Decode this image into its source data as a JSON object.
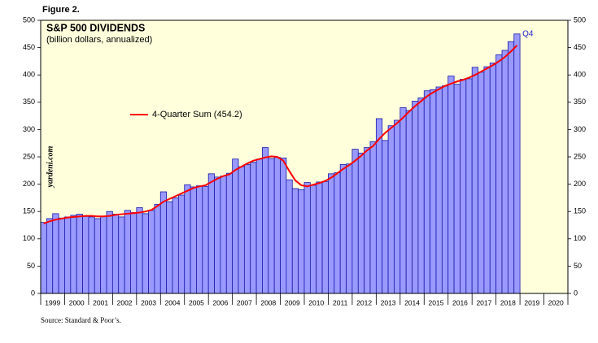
{
  "figure_label": "Figure 2.",
  "source": "Source: Standard & Poor’s.",
  "chart_data": {
    "type": "bar",
    "title": "S&P 500 DIVIDENDS",
    "subtitle": "(billion dollars, annualized)",
    "watermark": "yardeni.com",
    "annotation": "Q4",
    "x": [
      1999,
      1999.25,
      1999.5,
      1999.75,
      2000,
      2000.25,
      2000.5,
      2000.75,
      2001,
      2001.25,
      2001.5,
      2001.75,
      2002,
      2002.25,
      2002.5,
      2002.75,
      2003,
      2003.25,
      2003.5,
      2003.75,
      2004,
      2004.25,
      2004.5,
      2004.75,
      2005,
      2005.25,
      2005.5,
      2005.75,
      2006,
      2006.25,
      2006.5,
      2006.75,
      2007,
      2007.25,
      2007.5,
      2007.75,
      2008,
      2008.25,
      2008.5,
      2008.75,
      2009,
      2009.25,
      2009.5,
      2009.75,
      2010,
      2010.25,
      2010.5,
      2010.75,
      2011,
      2011.25,
      2011.5,
      2011.75,
      2012,
      2012.25,
      2012.5,
      2012.75,
      2013,
      2013.25,
      2013.5,
      2013.75,
      2014,
      2014.25,
      2014.5,
      2014.75,
      2015,
      2015.25,
      2015.5,
      2015.75,
      2016,
      2016.25,
      2016.5,
      2016.75,
      2017,
      2017.25,
      2017.5,
      2017.75,
      2018,
      2018.25,
      2018.5,
      2018.75
    ],
    "series": [
      {
        "name": "Dividends",
        "color": "#9999ff",
        "values": [
          130,
          137,
          146,
          138,
          140,
          143,
          145,
          141,
          140,
          137,
          141,
          150,
          145,
          140,
          152,
          148,
          157,
          146,
          152,
          163,
          186,
          168,
          175,
          180,
          199,
          195,
          197,
          196,
          219,
          213,
          215,
          220,
          246,
          232,
          236,
          240,
          246,
          267,
          247,
          249,
          248,
          208,
          192,
          190,
          203,
          198,
          204,
          205,
          219,
          221,
          236,
          237,
          264,
          257,
          267,
          278,
          320,
          280,
          307,
          317,
          340,
          335,
          352,
          358,
          371,
          373,
          378,
          380,
          398,
          383,
          392,
          393,
          414,
          405,
          415,
          422,
          437,
          445,
          461,
          475
        ]
      },
      {
        "name": "4-Quarter Sum (454.2)",
        "color": "#ff0000",
        "values": [
          128,
          132,
          135,
          137,
          139,
          140,
          141,
          142,
          142,
          141,
          141,
          142,
          144,
          145,
          146,
          147,
          148,
          150,
          153,
          160,
          168,
          173,
          178,
          183,
          188,
          193,
          196,
          198,
          204,
          210,
          215,
          218,
          226,
          232,
          238,
          243,
          246,
          249,
          251,
          250,
          243,
          224,
          207,
          198,
          196,
          199,
          202,
          206,
          212,
          220,
          228,
          235,
          243,
          252,
          262,
          270,
          283,
          294,
          303,
          312,
          322,
          333,
          343,
          352,
          361,
          368,
          374,
          380,
          384,
          388,
          391,
          395,
          400,
          406,
          412,
          418,
          425,
          433,
          443,
          454.2
        ]
      }
    ],
    "xlim": [
      1999,
      2021
    ],
    "xticks": [
      1999,
      2000,
      2001,
      2002,
      2003,
      2004,
      2005,
      2006,
      2007,
      2008,
      2009,
      2010,
      2011,
      2012,
      2013,
      2014,
      2015,
      2016,
      2017,
      2018,
      2019,
      2020,
      2021
    ],
    "x_labels": [
      "1999",
      "2000",
      "2001",
      "2002",
      "2003",
      "2004",
      "2005",
      "2006",
      "2007",
      "2008",
      "2009",
      "2010",
      "2011",
      "2012",
      "2013",
      "2014",
      "2015",
      "2016",
      "2017",
      "2018",
      "2019",
      "2020"
    ],
    "ylim": [
      0,
      500
    ],
    "yticks": [
      0,
      50,
      100,
      150,
      200,
      250,
      300,
      350,
      400,
      450,
      500
    ],
    "plot_background": "#ffffdc"
  }
}
